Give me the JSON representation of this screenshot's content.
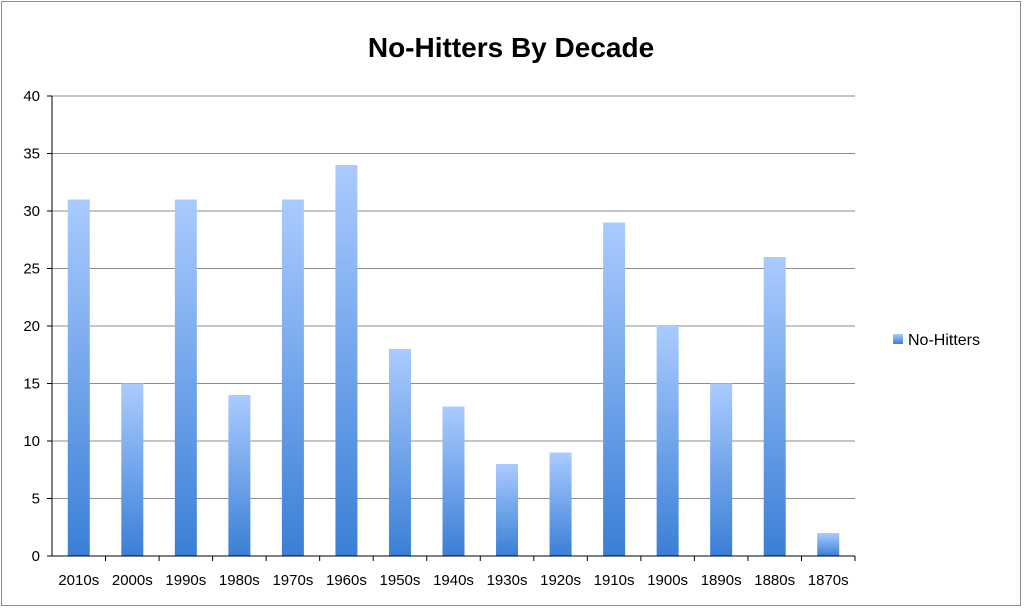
{
  "chart_data": {
    "type": "bar",
    "title": "No-Hitters By Decade",
    "xlabel": "",
    "ylabel": "",
    "categories": [
      "2010s",
      "2000s",
      "1990s",
      "1980s",
      "1970s",
      "1960s",
      "1950s",
      "1940s",
      "1930s",
      "1920s",
      "1910s",
      "1900s",
      "1890s",
      "1880s",
      "1870s"
    ],
    "series": [
      {
        "name": "No-Hitters",
        "values": [
          31,
          15,
          31,
          14,
          31,
          34,
          18,
          13,
          8,
          9,
          29,
          20,
          15,
          26,
          2
        ]
      }
    ],
    "ylim": [
      0,
      40
    ],
    "yticks": [
      0,
      5,
      10,
      15,
      20,
      25,
      30,
      35,
      40
    ],
    "grid": true,
    "legend": "right",
    "colors": {
      "bar_light": "#aacbff",
      "bar_dark": "#3a7fd6",
      "grid": "#8c8c8c",
      "axis": "#000000"
    }
  }
}
